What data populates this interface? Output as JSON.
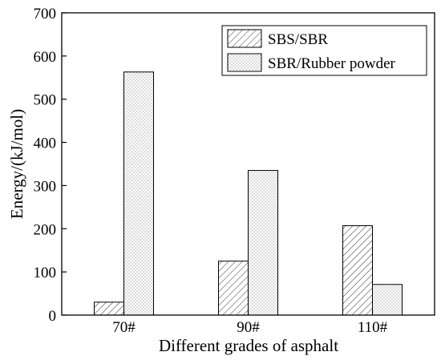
{
  "chart_data": {
    "type": "bar",
    "title": "",
    "xlabel": "Different grades of asphalt",
    "ylabel": "Energy/(kJ/mol)",
    "categories": [
      "70#",
      "90#",
      "110#"
    ],
    "ylim": [
      0,
      700
    ],
    "yticks": [
      0,
      100,
      200,
      300,
      400,
      500,
      600,
      700
    ],
    "grid": false,
    "legend_position": "top-right",
    "series": [
      {
        "name": "SBS/SBR",
        "pattern": "diagonal-hatch",
        "values": [
          30,
          125,
          207
        ]
      },
      {
        "name": "SBR/Rubber powder",
        "pattern": "dots",
        "values": [
          563,
          335,
          71
        ]
      }
    ]
  }
}
